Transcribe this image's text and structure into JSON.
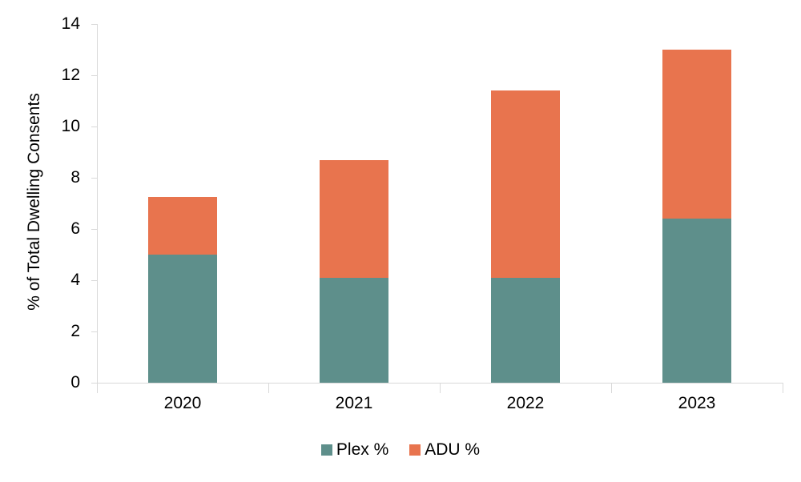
{
  "chart_data": {
    "type": "bar",
    "stacked": true,
    "categories": [
      "2020",
      "2021",
      "2022",
      "2023"
    ],
    "series": [
      {
        "name": "Plex %",
        "color": "#5e8f8b",
        "values": [
          5.0,
          4.1,
          4.1,
          6.4
        ]
      },
      {
        "name": "ADU %",
        "color": "#e8744e",
        "values": [
          2.25,
          4.6,
          7.3,
          6.6
        ]
      }
    ],
    "ylabel": "% of Total Dwelling Consents",
    "ylim": [
      0,
      14
    ],
    "yticks": [
      0,
      2,
      4,
      6,
      8,
      10,
      12,
      14
    ],
    "legend_position": "bottom",
    "grid": false,
    "axis_color": "#d9d9d9",
    "text_color": "#000000"
  }
}
